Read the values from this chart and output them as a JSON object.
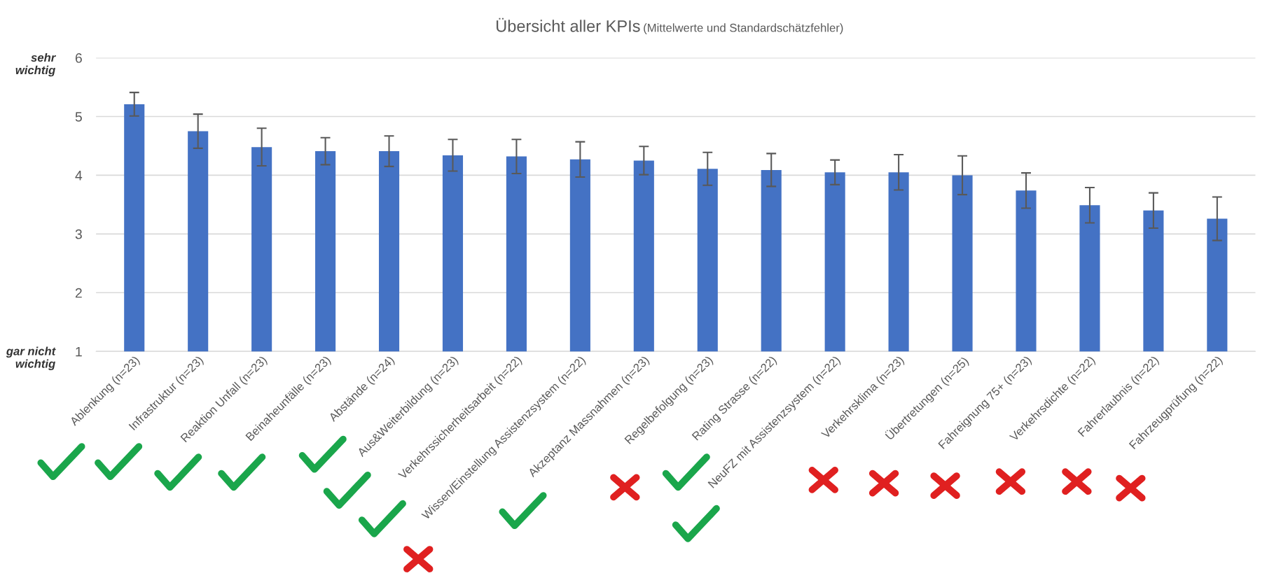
{
  "chart_data": {
    "type": "bar",
    "title": "Übersicht aller KPIs",
    "subtitle": "(Mittelwerte und Standardschätzfehler)",
    "categories": [
      "Ablenkung (n=23)",
      "Infrastruktur (n=23)",
      "Reaktion Unfall (n=23)",
      "Beinaheunfälle (n=23)",
      "Abstände (n=24)",
      "Aus&Weiterbildung (n=23)",
      "Verkehrssicherheitsarbeit (n=22)",
      "Wissen/Einstellung Assistenzsystem (n=22)",
      "Akzeptanz Massnahmen (n=23)",
      "Regelbefolgung (n=23)",
      "Rating Strasse (n=22)",
      "NeuFZ mit Assistenzsystem (n=22)",
      "Verkehrsklima (n=23)",
      "Übertretungen (n=25)",
      "Fahreignung 75+ (n=23)",
      "Verkehrsdichte (n=22)",
      "Fahrerlaubnis (n=22)",
      "Fahrzeugprüfung (n=22)"
    ],
    "values": [
      5.21,
      4.75,
      4.48,
      4.41,
      4.41,
      4.34,
      4.32,
      4.27,
      4.25,
      4.11,
      4.09,
      4.05,
      4.05,
      4.0,
      3.74,
      3.49,
      3.4,
      3.26
    ],
    "errors": [
      0.2,
      0.29,
      0.32,
      0.23,
      0.26,
      0.27,
      0.29,
      0.3,
      0.24,
      0.28,
      0.28,
      0.21,
      0.3,
      0.33,
      0.3,
      0.3,
      0.3,
      0.37
    ],
    "color": "#4472c4",
    "ylim": [
      1,
      6
    ],
    "yticks": [
      1,
      2,
      3,
      4,
      5,
      6
    ],
    "grid": "y",
    "annotations": [
      "sehr\nwichtig",
      "gar nicht\nwichtig"
    ]
  }
}
